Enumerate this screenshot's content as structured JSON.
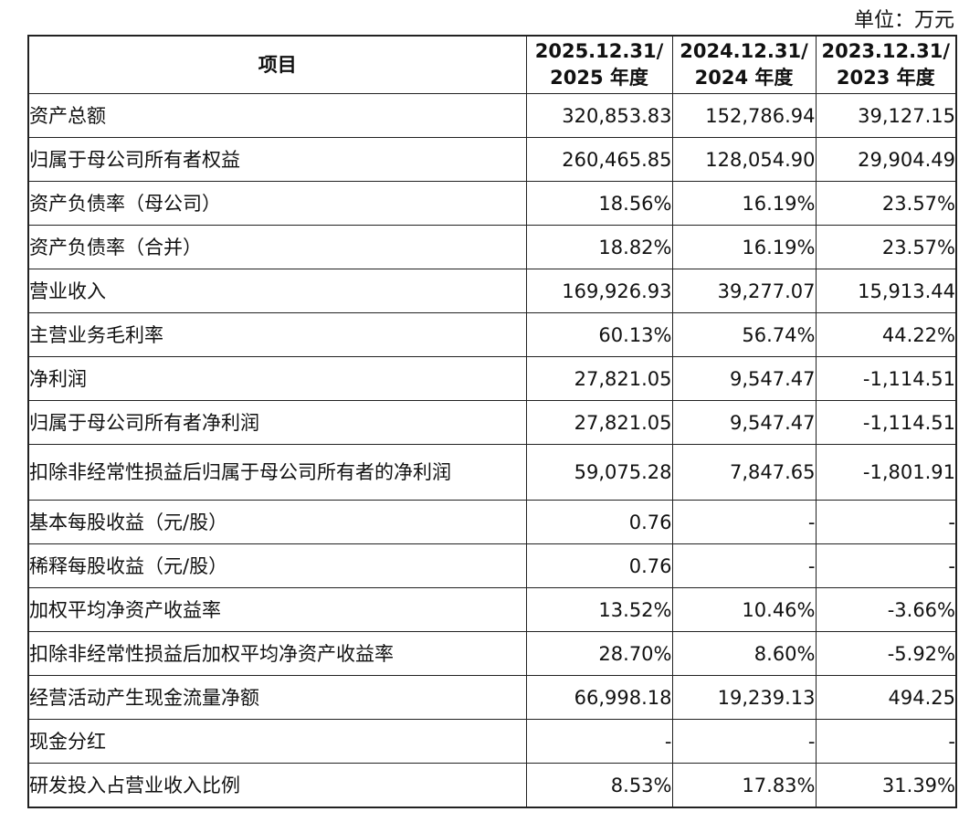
{
  "unit_label": "单位：万元",
  "header": {
    "item": "项目",
    "columns": [
      {
        "line1": "2025.12.31/",
        "line2": "2025 年度"
      },
      {
        "line1": "2024.12.31/",
        "line2": "2024 年度"
      },
      {
        "line1": "2023.12.31/",
        "line2": "2023 年度"
      }
    ]
  },
  "rows": [
    {
      "label": "资产总额",
      "values": [
        "320,853.83",
        "152,786.94",
        "39,127.15"
      ]
    },
    {
      "label": "归属于母公司所有者权益",
      "values": [
        "260,465.85",
        "128,054.90",
        "29,904.49"
      ]
    },
    {
      "label": "资产负债率（母公司）",
      "values": [
        "18.56%",
        "16.19%",
        "23.57%"
      ]
    },
    {
      "label": "资产负债率（合并）",
      "values": [
        "18.82%",
        "16.19%",
        "23.57%"
      ]
    },
    {
      "label": "营业收入",
      "values": [
        "169,926.93",
        "39,277.07",
        "15,913.44"
      ]
    },
    {
      "label": "主营业务毛利率",
      "values": [
        "60.13%",
        "56.74%",
        "44.22%"
      ]
    },
    {
      "label": "净利润",
      "values": [
        "27,821.05",
        "9,547.47",
        "-1,114.51"
      ]
    },
    {
      "label": "归属于母公司所有者净利润",
      "values": [
        "27,821.05",
        "9,547.47",
        "-1,114.51"
      ]
    },
    {
      "label": "扣除非经常性损益后归属于母公司所有者的净利润",
      "values": [
        "59,075.28",
        "7,847.65",
        "-1,801.91"
      ]
    },
    {
      "label": "基本每股收益（元/股）",
      "values": [
        "0.76",
        "-",
        "-"
      ]
    },
    {
      "label": "稀释每股收益（元/股）",
      "values": [
        "0.76",
        "-",
        "-"
      ]
    },
    {
      "label": "加权平均净资产收益率",
      "values": [
        "13.52%",
        "10.46%",
        "-3.66%"
      ]
    },
    {
      "label": "扣除非经常性损益后加权平均净资产收益率",
      "values": [
        "28.70%",
        "8.60%",
        "-5.92%"
      ]
    },
    {
      "label": "经营活动产生现金流量净额",
      "values": [
        "66,998.18",
        "19,239.13",
        "494.25"
      ]
    },
    {
      "label": "现金分红",
      "values": [
        "-",
        "-",
        "-"
      ]
    },
    {
      "label": "研发投入占营业收入比例",
      "values": [
        "8.53%",
        "17.83%",
        "31.39%"
      ]
    }
  ]
}
